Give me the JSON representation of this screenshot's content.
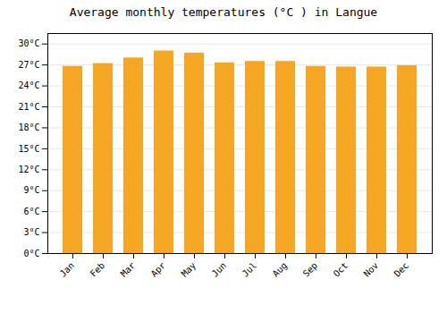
{
  "chart_data": {
    "type": "bar",
    "title": "Average monthly temperatures (°C ) in Langue",
    "categories": [
      "Jan",
      "Feb",
      "Mar",
      "Apr",
      "May",
      "Jun",
      "Jul",
      "Aug",
      "Sep",
      "Oct",
      "Nov",
      "Dec"
    ],
    "values": [
      26.8,
      27.2,
      28.0,
      29.0,
      28.7,
      27.3,
      27.5,
      27.5,
      26.8,
      26.7,
      26.7,
      26.9
    ],
    "color": "#F5A623",
    "ylim": [
      0,
      31.5
    ],
    "yticks": [
      {
        "value": 0,
        "label": "0°C"
      },
      {
        "value": 3,
        "label": "3°C"
      },
      {
        "value": 6,
        "label": "6°C"
      },
      {
        "value": 9,
        "label": "9°C"
      },
      {
        "value": 12,
        "label": "12°C"
      },
      {
        "value": 15,
        "label": "15°C"
      },
      {
        "value": 18,
        "label": "18°C"
      },
      {
        "value": 21,
        "label": "21°C"
      },
      {
        "value": 24,
        "label": "24°C"
      },
      {
        "value": 27,
        "label": "27°C"
      },
      {
        "value": 30,
        "label": "30°C"
      }
    ],
    "grid": true
  }
}
